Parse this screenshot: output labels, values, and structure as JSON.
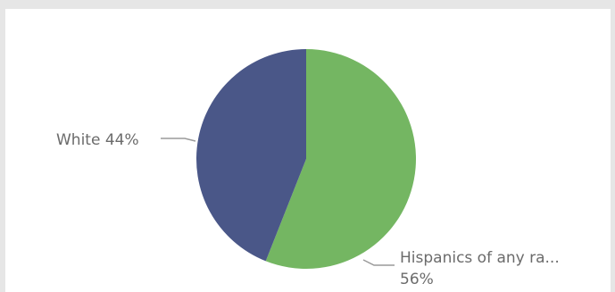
{
  "chart_data": {
    "type": "pie",
    "slices": [
      {
        "label": "Hispanics of any ra...",
        "value": 56,
        "percent_label": "56%",
        "color": "#74b662"
      },
      {
        "label": "White",
        "value": 44,
        "percent_label": "White 44%",
        "color": "#4a5788"
      }
    ],
    "title": "",
    "legend": "none"
  }
}
